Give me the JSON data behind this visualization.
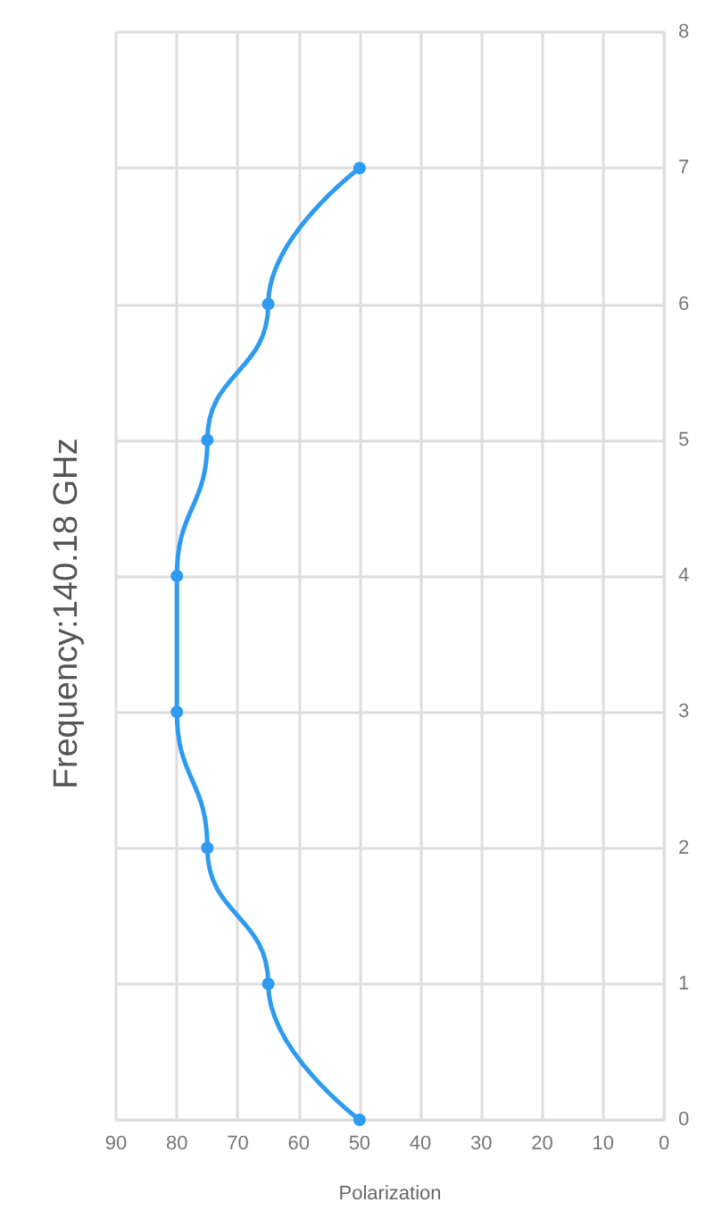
{
  "chart_data": {
    "type": "line",
    "title": "Frequency:140.18 GHz",
    "xlabel": "Polarization",
    "series": [
      {
        "color": "#2e9bf0",
        "x": [
          50,
          65,
          75,
          80,
          80,
          75,
          65,
          50
        ],
        "values": [
          0,
          1,
          2,
          3,
          4,
          5,
          6,
          7
        ]
      }
    ],
    "xlim": [
      90,
      0
    ],
    "xticks": [
      90,
      80,
      70,
      60,
      50,
      40,
      30,
      20,
      10,
      0
    ],
    "ylim": [
      0,
      8
    ],
    "yticks": [
      0,
      1,
      2,
      3,
      4,
      5,
      6,
      7,
      8
    ],
    "grid": true,
    "marker": "circle",
    "line_style": "solid"
  }
}
